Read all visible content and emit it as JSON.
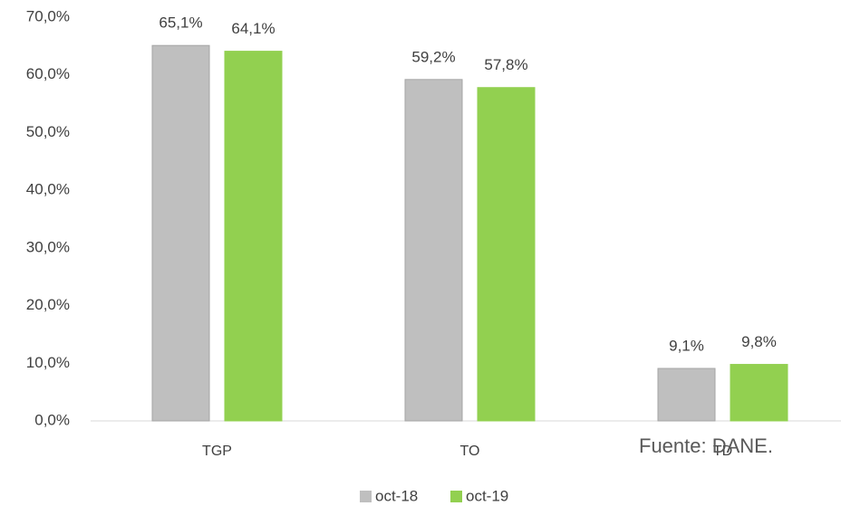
{
  "chart_data": {
    "type": "bar",
    "categories": [
      "TGP",
      "TO",
      "TD"
    ],
    "series": [
      {
        "name": "oct-18",
        "color": "#bfbfbf",
        "values": [
          65.1,
          59.2,
          9.1
        ],
        "value_labels": [
          "65,1%",
          "59,2%",
          "9,1%"
        ]
      },
      {
        "name": "oct-19",
        "color": "#92d050",
        "values": [
          64.1,
          57.8,
          9.8
        ],
        "value_labels": [
          "64,1%",
          "57,8%",
          "9,8%"
        ]
      }
    ],
    "ylim": [
      0,
      70
    ],
    "yticks": [
      {
        "value": 0,
        "label": "0,0%"
      },
      {
        "value": 10,
        "label": "10,0%"
      },
      {
        "value": 20,
        "label": "20,0%"
      },
      {
        "value": 30,
        "label": "30,0%"
      },
      {
        "value": 40,
        "label": "40,0%"
      },
      {
        "value": 50,
        "label": "50,0%"
      },
      {
        "value": 60,
        "label": "60,0%"
      },
      {
        "value": 70,
        "label": "70,0%"
      }
    ],
    "grid": false,
    "legend": "bottom",
    "annotation": "Fuente: DANE."
  }
}
